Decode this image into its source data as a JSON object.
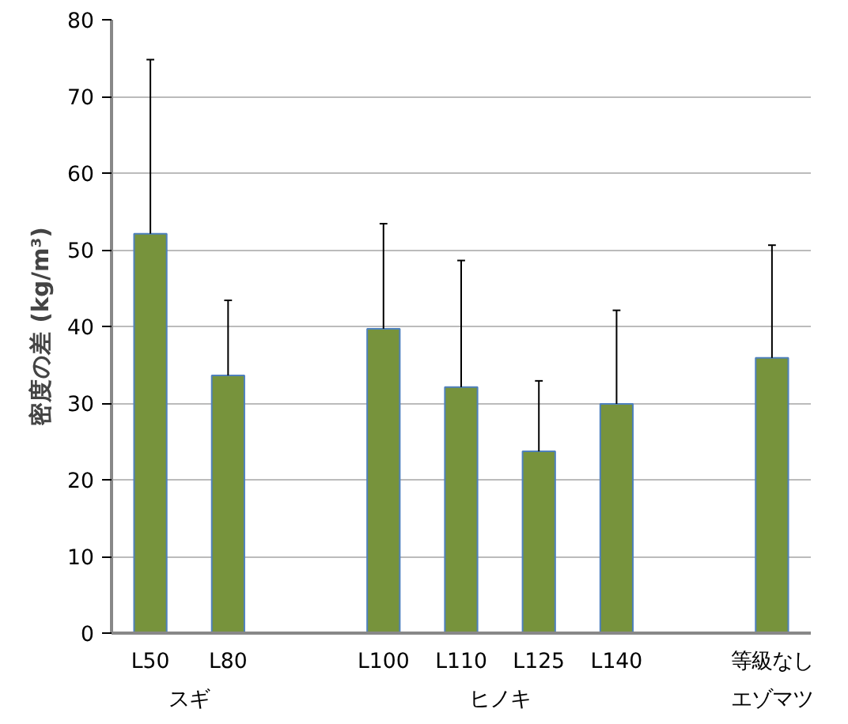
{
  "chart_data": {
    "type": "bar",
    "ylabel": "密度の差 (kg/m³)",
    "categories": [
      "L50",
      "L80",
      null,
      "L100",
      "L110",
      "L125",
      "L140",
      null,
      "等級なし"
    ],
    "values": [
      52.1,
      33.6,
      null,
      39.7,
      32.1,
      23.7,
      29.9,
      null,
      35.9
    ],
    "errors": [
      [
        52.1,
        74.8
      ],
      [
        33.6,
        43.4
      ],
      null,
      [
        39.7,
        53.4
      ],
      [
        32.1,
        48.6
      ],
      [
        23.7,
        32.9
      ],
      [
        29.9,
        42.1
      ],
      null,
      [
        35.9,
        50.6
      ]
    ],
    "color": "#77933c",
    "ylim": [
      0,
      80
    ],
    "yticks": [
      0,
      10,
      20,
      30,
      40,
      50,
      60,
      70,
      80
    ],
    "grid": "y",
    "annotations": [
      "スギ",
      "ヒノキ",
      "エゾマツ"
    ]
  }
}
